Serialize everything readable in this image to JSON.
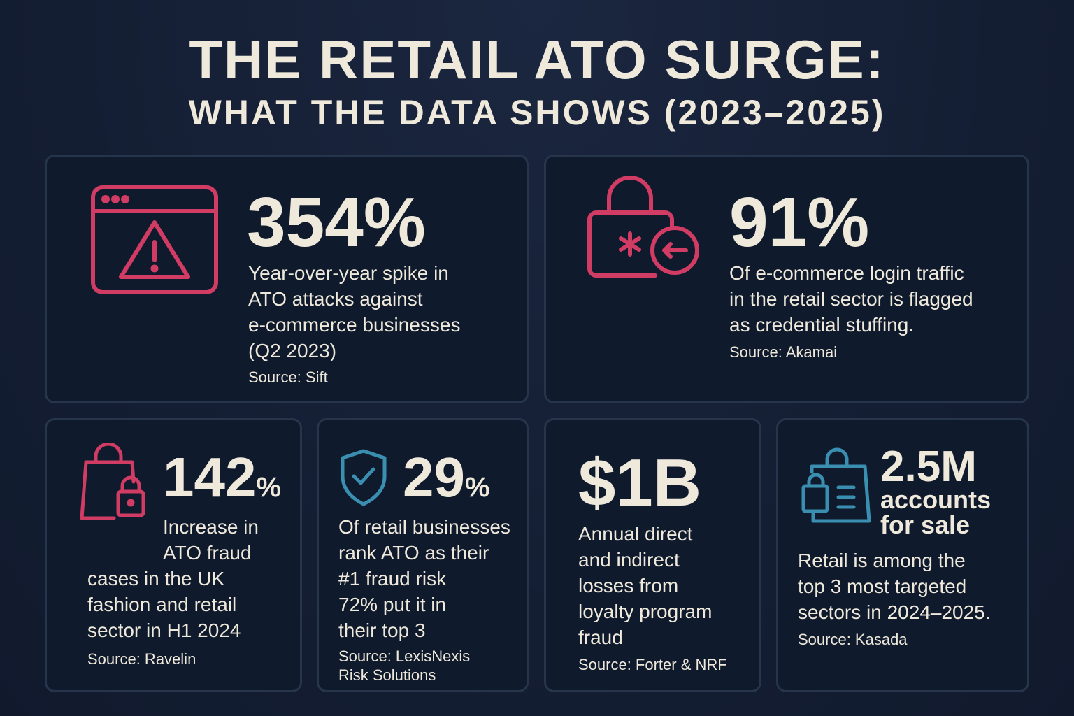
{
  "header": {
    "title": "THE RETAIL ATO SURGE:",
    "subtitle": "WHAT THE DATA SHOWS (2023–2025)"
  },
  "colors": {
    "accent_pink": "#d03c64",
    "accent_teal": "#3a8fb0",
    "text": "#efe9dc",
    "card": "#0f1a2c",
    "background": "#141e33"
  },
  "cards": [
    {
      "icon": "browser-warning-icon",
      "stat": "354%",
      "desc": [
        "Year-over-year spike in",
        "ATO attacks against",
        "e-commerce businesses",
        "(Q2 2023)"
      ],
      "source": "Source: Sift"
    },
    {
      "icon": "lock-credential-icon",
      "stat": "91%",
      "desc": [
        "Of e-commerce login traffic",
        "in the retail sector is flagged",
        "as credential stuffing."
      ],
      "source": "Source: Akamai"
    },
    {
      "icon": "shopping-bag-lock-icon",
      "stat": "142",
      "unit": "%",
      "desc": [
        "Increase in",
        "ATO fraud",
        "cases in the UK",
        "fashion and retail",
        "sector in H1 2024"
      ],
      "source": "Source: Ravelin"
    },
    {
      "icon": "shield-check-icon",
      "stat": "29",
      "unit": "%",
      "desc": [
        "Of retail businesses",
        "rank ATO as their",
        "#1 fraud risk",
        "72% put it in",
        "their top 3"
      ],
      "source": [
        "Source: LexisNexis",
        "Risk Solutions"
      ]
    },
    {
      "stat": "$1B",
      "desc": [
        "Annual direct",
        "and indirect",
        "losses from",
        "loyalty program",
        "fraud"
      ],
      "source": "Source: Forter & NRF"
    },
    {
      "icon": "bag-list-lock-icon",
      "stat": "2.5M",
      "stat_sub": [
        "accounts",
        "for sale"
      ],
      "desc": [
        "Retail is among the",
        "top 3 most targeted",
        "sectors in 2024–2025."
      ],
      "source": "Source: Kasada"
    }
  ]
}
